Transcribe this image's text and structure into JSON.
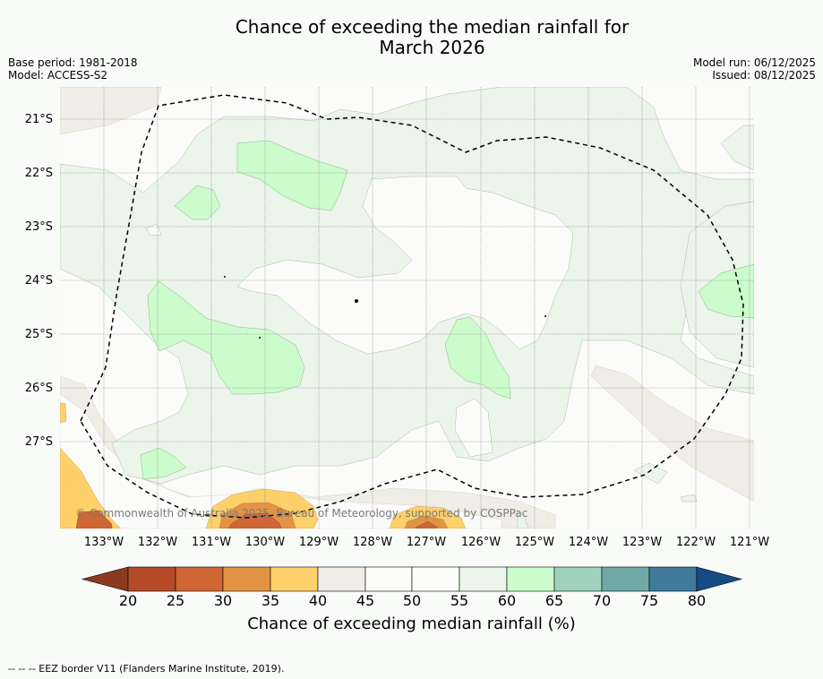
{
  "header": {
    "title_line1": "Chance of exceeding the median rainfall for",
    "title_line2": "March 2026",
    "base_period": "Base period: 1981-2018",
    "model": "Model: ACCESS-S2",
    "model_run": "Model run: 06/12/2025",
    "issued": "Issued: 08/12/2025"
  },
  "map": {
    "lat_labels": [
      "21°S",
      "22°S",
      "23°S",
      "24°S",
      "25°S",
      "26°S",
      "27°S"
    ],
    "lon_labels": [
      "133°W",
      "132°W",
      "131°W",
      "130°W",
      "129°W",
      "128°W",
      "127°W",
      "126°W",
      "125°W",
      "124°W",
      "123°W",
      "122°W",
      "121°W"
    ],
    "copyright": "© Commonwealth of Australia 2025, Bureau of Meteorology, supported by COSPPac"
  },
  "colorbar": {
    "ticks": [
      "20",
      "25",
      "30",
      "35",
      "40",
      "45",
      "50",
      "55",
      "60",
      "65",
      "70",
      "75",
      "80"
    ],
    "colors": [
      "#8c3b21",
      "#b54a27",
      "#cf6634",
      "#e29444",
      "#fdd06a",
      "#f0ede7",
      "#fcfcfa",
      "#fbfcfa",
      "#ebf5e9",
      "#ccfccc",
      "#9fd2bd",
      "#70a8a8",
      "#407b9b",
      "#174b83"
    ],
    "title": "Chance of exceeding median rainfall (%)"
  },
  "footnote": "--  --  -- EEZ border V11 (Flanders Marine Institute, 2019)."
}
